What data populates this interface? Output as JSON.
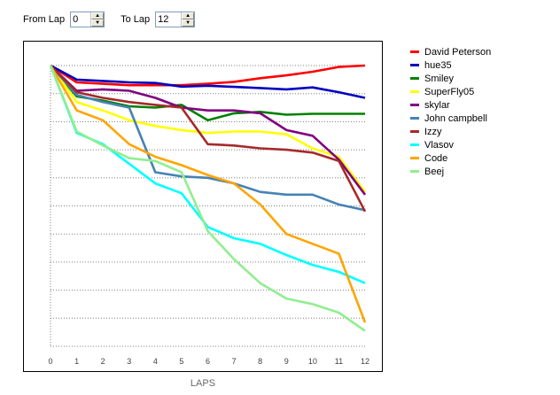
{
  "controls": {
    "from_label": "From Lap",
    "from_value": "0",
    "to_label": "To Lap",
    "to_value": "12"
  },
  "chart_data": {
    "type": "line",
    "xlabel": "LAPS",
    "x": [
      0,
      1,
      2,
      3,
      4,
      5,
      6,
      7,
      8,
      9,
      10,
      11,
      12
    ],
    "xlim": [
      0,
      12
    ],
    "ylim": [
      0,
      10
    ],
    "grid": "horizontal dotted",
    "legend": "right",
    "series": [
      {
        "name": "David Peterson",
        "color": "#ff0000",
        "values": [
          0,
          0.6,
          0.65,
          0.7,
          0.7,
          0.7,
          0.65,
          0.58,
          0.45,
          0.35,
          0.22,
          0.05,
          0
        ]
      },
      {
        "name": "hue35",
        "color": "#0000c0",
        "values": [
          0,
          0.5,
          0.55,
          0.6,
          0.62,
          0.75,
          0.72,
          0.76,
          0.8,
          0.85,
          0.78,
          0.95,
          1.15
        ]
      },
      {
        "name": "Smiley",
        "color": "#008000",
        "values": [
          0,
          1.1,
          1.25,
          1.45,
          1.5,
          1.4,
          1.95,
          1.7,
          1.65,
          1.75,
          1.72,
          1.72,
          1.72
        ]
      },
      {
        "name": "SuperFly05",
        "color": "#ffff00",
        "values": [
          0,
          1.3,
          1.6,
          1.95,
          2.15,
          2.3,
          2.4,
          2.35,
          2.35,
          2.45,
          2.95,
          3.25,
          4.5
        ]
      },
      {
        "name": "skylar",
        "color": "#800080",
        "values": [
          0,
          0.9,
          0.85,
          0.9,
          1.15,
          1.5,
          1.6,
          1.6,
          1.7,
          2.3,
          2.5,
          3.35,
          4.6
        ]
      },
      {
        "name": "John campbell",
        "color": "#4682b4",
        "values": [
          0,
          1.05,
          1.3,
          1.5,
          3.8,
          3.95,
          4.0,
          4.2,
          4.5,
          4.6,
          4.6,
          4.95,
          5.15
        ]
      },
      {
        "name": "Izzy",
        "color": "#a52a2a",
        "values": [
          0,
          0.95,
          1.15,
          1.3,
          1.4,
          1.5,
          2.8,
          2.85,
          2.95,
          3.0,
          3.1,
          3.4,
          5.2
        ]
      },
      {
        "name": "Vlasov",
        "color": "#00ffff",
        "values": [
          0,
          2.4,
          2.8,
          3.5,
          4.2,
          4.55,
          5.75,
          6.15,
          6.35,
          6.75,
          7.1,
          7.35,
          7.75
        ]
      },
      {
        "name": "Code",
        "color": "#ffa500",
        "values": [
          0,
          1.6,
          1.95,
          2.8,
          3.25,
          3.55,
          3.9,
          4.2,
          4.95,
          6.0,
          6.35,
          6.7,
          9.15
        ]
      },
      {
        "name": "Beej",
        "color": "#90ee90",
        "values": [
          0,
          2.35,
          2.85,
          3.3,
          3.4,
          3.8,
          5.9,
          6.9,
          7.75,
          8.3,
          8.5,
          8.8,
          9.45
        ]
      }
    ]
  }
}
